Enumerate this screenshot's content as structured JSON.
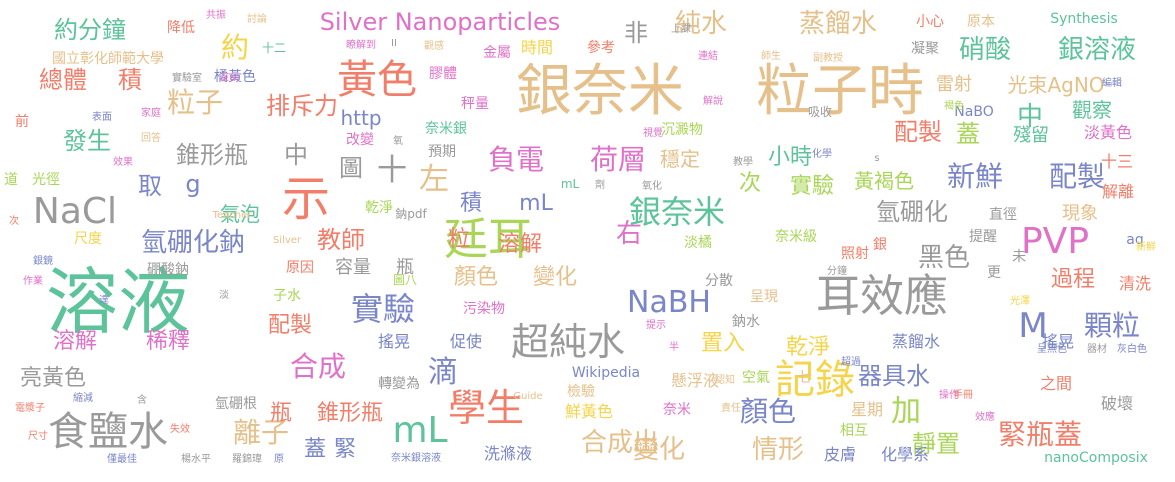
{
  "words": [
    {
      "text": "溶液",
      "color": "#5cc39a"
    },
    {
      "text": "銀奈米",
      "color": "#e6c08a"
    },
    {
      "text": "粒子時",
      "color": "#e6c08a"
    },
    {
      "text": "廷耳",
      "color": "#a9d656"
    },
    {
      "text": "耳效應",
      "color": "#9a9a9a"
    },
    {
      "text": "食鹽水",
      "color": "#9a9a9a"
    },
    {
      "text": "記錄",
      "color": "#f6d44a"
    },
    {
      "text": "學生",
      "color": "#f27e6a"
    },
    {
      "text": "PVP",
      "color": "#e071c8"
    },
    {
      "text": "NaCl",
      "color": "#9a9a9a"
    },
    {
      "text": "示",
      "color": "#f27e6a"
    },
    {
      "text": "黃色",
      "color": "#f27e6a"
    },
    {
      "text": "Silver Nanoparticles",
      "color": "#e071c8"
    },
    {
      "text": "純水",
      "color": "#e6c08a"
    },
    {
      "text": "蒸餾水",
      "color": "#e6c08a"
    },
    {
      "text": "硝酸",
      "color": "#5cc39a"
    },
    {
      "text": "銀溶液",
      "color": "#5cc39a"
    },
    {
      "text": "超純水",
      "color": "#9a9a9a"
    },
    {
      "text": "實驗",
      "color": "#7a86c8"
    },
    {
      "text": "銀奈米",
      "color": "#5cc39a"
    },
    {
      "text": "負電",
      "color": "#e071c8"
    },
    {
      "text": "荷層",
      "color": "#e071c8"
    },
    {
      "text": "mL",
      "color": "#5cc39a"
    },
    {
      "text": "NaBH",
      "color": "#7a86c8"
    },
    {
      "text": "M",
      "color": "#7a86c8"
    },
    {
      "text": "顆粒",
      "color": "#7a86c8"
    },
    {
      "text": "總體",
      "color": "#f27e6a"
    },
    {
      "text": "積",
      "color": "#f27e6a"
    },
    {
      "text": "粒子",
      "color": "#e6c08a"
    },
    {
      "text": "排斥力",
      "color": "#f27e6a"
    },
    {
      "text": "約",
      "color": "#f6d44a"
    },
    {
      "text": "約分鐘",
      "color": "#5cc39a"
    },
    {
      "text": "發生",
      "color": "#5cc39a"
    },
    {
      "text": "錐形瓶",
      "color": "#9a9a9a"
    },
    {
      "text": "中",
      "color": "#9a9a9a"
    },
    {
      "text": "十",
      "color": "#9a9a9a"
    },
    {
      "text": "左",
      "color": "#e6c08a"
    },
    {
      "text": "圖",
      "color": "#9a9a9a"
    },
    {
      "text": "中",
      "color": "#5cc39a"
    },
    {
      "text": "取",
      "color": "#7a86c8"
    },
    {
      "text": "g",
      "color": "#7a86c8"
    },
    {
      "text": "積",
      "color": "#7a86c8"
    },
    {
      "text": "mL",
      "color": "#7a86c8"
    },
    {
      "text": "新鮮",
      "color": "#7a86c8"
    },
    {
      "text": "配製",
      "color": "#7a86c8"
    },
    {
      "text": "配製",
      "color": "#f27e6a"
    },
    {
      "text": "蓋",
      "color": "#a9d656"
    },
    {
      "text": "氫硼化鈉",
      "color": "#7a86c8"
    },
    {
      "text": "氫硼化",
      "color": "#9a9a9a"
    },
    {
      "text": "教師",
      "color": "#f27e6a"
    },
    {
      "text": "右",
      "color": "#e071c8"
    },
    {
      "text": "合成",
      "color": "#e071c8"
    },
    {
      "text": "滴",
      "color": "#7a86c8"
    },
    {
      "text": "顏色",
      "color": "#7a86c8"
    },
    {
      "text": "加",
      "color": "#a9d656"
    },
    {
      "text": "mL",
      "color": "#5cc39a"
    },
    {
      "text": "離子",
      "color": "#e6c08a"
    },
    {
      "text": "合成出",
      "color": "#e6c08a"
    },
    {
      "text": "變化",
      "color": "#e6c08a"
    },
    {
      "text": "情形",
      "color": "#e6c08a"
    },
    {
      "text": "緊瓶蓋",
      "color": "#f27e6a"
    },
    {
      "text": "靜置",
      "color": "#a9d656"
    },
    {
      "text": "黑色",
      "color": "#9a9a9a"
    },
    {
      "text": "過程",
      "color": "#f27e6a"
    },
    {
      "text": "器具水",
      "color": "#7a86c8"
    },
    {
      "text": "非",
      "color": "#9a9a9a"
    },
    {
      "text": "小時",
      "color": "#5cc39a"
    },
    {
      "text": "次",
      "color": "#a9d656"
    },
    {
      "text": "實驗",
      "color": "#a9d656"
    },
    {
      "text": "穩定",
      "color": "#e6c08a"
    },
    {
      "text": "黃褐色",
      "color": "#a9d656"
    },
    {
      "text": "現象",
      "color": "#e6c08a"
    },
    {
      "text": "溶解",
      "color": "#e071c8"
    },
    {
      "text": "稀釋",
      "color": "#e071c8"
    },
    {
      "text": "亮黃色",
      "color": "#9a9a9a"
    },
    {
      "text": "粒",
      "color": "#f27e6a"
    },
    {
      "text": "溶解",
      "color": "#f27e6a"
    },
    {
      "text": "顏色",
      "color": "#e6c08a"
    },
    {
      "text": "變化",
      "color": "#e6c08a"
    },
    {
      "text": "配製",
      "color": "#f27e6a"
    },
    {
      "text": "置入",
      "color": "#f6d44a"
    },
    {
      "text": "乾淨",
      "color": "#f6d44a"
    },
    {
      "text": "蓋",
      "color": "#7a86c8"
    },
    {
      "text": "緊",
      "color": "#7a86c8"
    },
    {
      "text": "瓶",
      "color": "#f27e6a"
    },
    {
      "text": "錐形瓶",
      "color": "#f27e6a"
    },
    {
      "text": "http",
      "color": "#7a86c8"
    },
    {
      "text": "氣泡",
      "color": "#5cc39a"
    },
    {
      "text": "容量",
      "color": "#9a9a9a"
    },
    {
      "text": "瓶",
      "color": "#9a9a9a"
    },
    {
      "text": "時間",
      "color": "#f6d44a"
    },
    {
      "text": "光束AgNO",
      "color": "#e6c08a"
    },
    {
      "text": "雷射",
      "color": "#e6c08a"
    },
    {
      "text": "觀察",
      "color": "#5cc39a"
    },
    {
      "text": "殘留",
      "color": "#5cc39a"
    },
    {
      "text": "淡黃色",
      "color": "#e071c8"
    },
    {
      "text": "十三",
      "color": "#f27e6a"
    },
    {
      "text": "解離",
      "color": "#f27e6a"
    },
    {
      "text": "清洗",
      "color": "#f27e6a"
    },
    {
      "text": "之間",
      "color": "#f27e6a"
    },
    {
      "text": "破壞",
      "color": "#9a9a9a"
    },
    {
      "text": "星期",
      "color": "#e6c08a"
    },
    {
      "text": "鮮黃色",
      "color": "#f6d44a"
    },
    {
      "text": "洗滌液",
      "color": "#7a86c8"
    },
    {
      "text": "懸浮液",
      "color": "#e6c08a"
    },
    {
      "text": "皮膚",
      "color": "#7a86c8"
    },
    {
      "text": "化學系",
      "color": "#7a86c8"
    },
    {
      "text": "轉變為",
      "color": "#9a9a9a"
    },
    {
      "text": "搖晃",
      "color": "#7a86c8"
    },
    {
      "text": "促使",
      "color": "#7a86c8"
    },
    {
      "text": "搖晃",
      "color": "#7a86c8"
    },
    {
      "text": "蒸餾水",
      "color": "#7a86c8"
    },
    {
      "text": "Wikipedia",
      "color": "#7a86c8"
    },
    {
      "text": "國立彰化師範大學",
      "color": "#e6c08a"
    },
    {
      "text": "降低",
      "color": "#f27e6a"
    },
    {
      "text": "十二",
      "color": "#5cc39a"
    },
    {
      "text": "膠體",
      "color": "#e071c8"
    },
    {
      "text": "秤量",
      "color": "#e071c8"
    },
    {
      "text": "金屬",
      "color": "#e071c8"
    },
    {
      "text": "參考",
      "color": "#f27e6a"
    },
    {
      "text": "小心",
      "color": "#f27e6a"
    },
    {
      "text": "原本",
      "color": "#e6c08a"
    },
    {
      "text": "凝聚",
      "color": "#9a9a9a"
    },
    {
      "text": "Synthesis",
      "color": "#5cc39a"
    },
    {
      "text": "奈米銀",
      "color": "#5cc39a"
    },
    {
      "text": "沉澱物",
      "color": "#a9d656"
    },
    {
      "text": "預期",
      "color": "#9a9a9a"
    },
    {
      "text": "改變",
      "color": "#e071c8"
    },
    {
      "text": "道",
      "color": "#a9d656"
    },
    {
      "text": "光徑",
      "color": "#a9d656"
    },
    {
      "text": "尺度",
      "color": "#f6d44a"
    },
    {
      "text": "乾淨",
      "color": "#a9d656"
    },
    {
      "text": "鈉pdf",
      "color": "#9a9a9a"
    },
    {
      "text": "淡橘",
      "color": "#a9d656"
    },
    {
      "text": "奈米級",
      "color": "#a9d656"
    },
    {
      "text": "照射",
      "color": "#f27e6a"
    },
    {
      "text": "銀",
      "color": "#f27e6a"
    },
    {
      "text": "直徑",
      "color": "#9a9a9a"
    },
    {
      "text": "提醒",
      "color": "#9a9a9a"
    },
    {
      "text": "更",
      "color": "#9a9a9a"
    },
    {
      "text": "未",
      "color": "#9a9a9a"
    },
    {
      "text": "aq",
      "color": "#7a86c8"
    },
    {
      "text": "原因",
      "color": "#f27e6a"
    },
    {
      "text": "圖八",
      "color": "#a9d656"
    },
    {
      "text": "子水",
      "color": "#a9d656"
    },
    {
      "text": "污染物",
      "color": "#e071c8"
    },
    {
      "text": "分散",
      "color": "#9a9a9a"
    },
    {
      "text": "呈現",
      "color": "#e6c08a"
    },
    {
      "text": "鈉水",
      "color": "#9a9a9a"
    },
    {
      "text": "空氣",
      "color": "#a9d656"
    },
    {
      "text": "七",
      "color": "#e6c08a"
    },
    {
      "text": "檢驗",
      "color": "#e6c08a"
    },
    {
      "text": "奈米",
      "color": "#e071c8"
    },
    {
      "text": "相互",
      "color": "#a9d656"
    },
    {
      "text": "nanoComposix",
      "color": "#5cc39a"
    },
    {
      "text": "氫硼根",
      "color": "#9a9a9a"
    },
    {
      "text": "硼酸鈉",
      "color": "#9a9a9a"
    },
    {
      "text": "橘黃色",
      "color": "#7a86c8"
    },
    {
      "text": "NaBO",
      "color": "#7a86c8"
    },
    {
      "text": "前",
      "color": "#f27e6a"
    },
    {
      "text": "吸收",
      "color": "#9a9a9a"
    },
    {
      "text": "共振",
      "color": "#e071c8"
    },
    {
      "text": "討論",
      "color": "#e6c08a"
    },
    {
      "text": "瞭解到",
      "color": "#e071c8"
    },
    {
      "text": "觀感",
      "color": "#e6c08a"
    },
    {
      "text": "上課",
      "color": "#9a9a9a"
    },
    {
      "text": "連結",
      "color": "#e071c8"
    },
    {
      "text": "師生",
      "color": "#e6c08a"
    },
    {
      "text": "副教授",
      "color": "#e6c08a"
    },
    {
      "text": "實驗室",
      "color": "#9a9a9a"
    },
    {
      "text": "深刻",
      "color": "#e071c8"
    },
    {
      "text": "家庭",
      "color": "#e071c8"
    },
    {
      "text": "表面",
      "color": "#7a86c8"
    },
    {
      "text": "回答",
      "color": "#e6c08a"
    },
    {
      "text": "解說",
      "color": "#e071c8"
    },
    {
      "text": "褐色",
      "color": "#a9d656"
    },
    {
      "text": "編輯",
      "color": "#7a86c8"
    },
    {
      "text": "視覺",
      "color": "#e071c8"
    },
    {
      "text": "效果",
      "color": "#e071c8"
    },
    {
      "text": "教學",
      "color": "#9a9a9a"
    },
    {
      "text": "化學",
      "color": "#7a86c8"
    },
    {
      "text": "劑",
      "color": "#9a9a9a"
    },
    {
      "text": "氧化",
      "color": "#9a9a9a"
    },
    {
      "text": "Teacher",
      "color": "#e6c08a"
    },
    {
      "text": "Silver",
      "color": "#e6c08a"
    },
    {
      "text": "次",
      "color": "#f27e6a"
    },
    {
      "text": "作業",
      "color": "#e071c8"
    },
    {
      "text": "銀鏡",
      "color": "#7a86c8"
    },
    {
      "text": "淡",
      "color": "#9a9a9a"
    },
    {
      "text": "達",
      "color": "#7a86c8"
    },
    {
      "text": "電漿子",
      "color": "#f27e6a"
    },
    {
      "text": "縮減",
      "color": "#7a86c8"
    },
    {
      "text": "尺寸",
      "color": "#f27e6a"
    },
    {
      "text": "含",
      "color": "#9a9a9a"
    },
    {
      "text": "失效",
      "color": "#f27e6a"
    },
    {
      "text": "僅最佳",
      "color": "#7a86c8"
    },
    {
      "text": "楊水平",
      "color": "#9a9a9a"
    },
    {
      "text": "羅錦瑋",
      "color": "#9a9a9a"
    },
    {
      "text": "原",
      "color": "#7a86c8"
    },
    {
      "text": "奈米銀溶液",
      "color": "#7a86c8"
    },
    {
      "text": "Guide",
      "color": "#e6c08a"
    },
    {
      "text": "提示",
      "color": "#e071c8"
    },
    {
      "text": "半",
      "color": "#e071c8"
    },
    {
      "text": "認知",
      "color": "#e6c08a"
    },
    {
      "text": "責任",
      "color": "#e6c08a"
    },
    {
      "text": "操作",
      "color": "#e071c8"
    },
    {
      "text": "手冊",
      "color": "#f27e6a"
    },
    {
      "text": "效應",
      "color": "#e071c8"
    },
    {
      "text": "分鐘",
      "color": "#9a9a9a"
    },
    {
      "text": "光澤",
      "color": "#f6d44a"
    },
    {
      "text": "超過",
      "color": "#7a86c8"
    },
    {
      "text": "呈無色",
      "color": "#7a86c8"
    },
    {
      "text": "器材",
      "color": "#9a9a9a"
    },
    {
      "text": "灰白色",
      "color": "#7a86c8"
    },
    {
      "text": "新鮮",
      "color": "#f6d44a"
    },
    {
      "text": "氧",
      "color": "#9a9a9a"
    },
    {
      "text": "s",
      "color": "#9a9a9a"
    },
    {
      "text": "II",
      "color": "#9a9a9a"
    }
  ]
}
